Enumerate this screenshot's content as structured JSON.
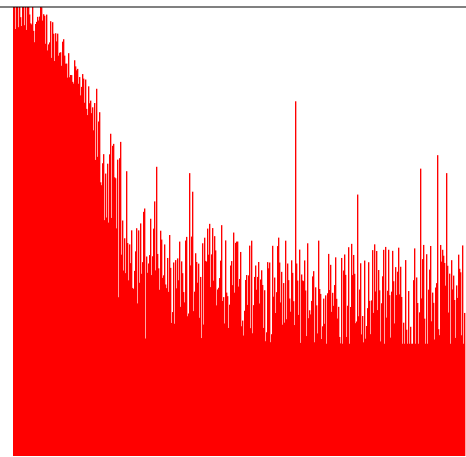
{
  "chart_data": {
    "type": "bar",
    "description_mode": "dense-histogram",
    "colors": {
      "bars": "#ff0000",
      "background": "#ffffff",
      "axis": "#000000"
    },
    "grid": false,
    "legend": "none",
    "ylim": [
      0,
      1
    ],
    "x": {
      "count": 452
    },
    "envelope": [
      {
        "pos": 0.0,
        "value": 0.985
      },
      {
        "pos": 0.05,
        "value": 0.97
      },
      {
        "pos": 0.1,
        "value": 0.92
      },
      {
        "pos": 0.14,
        "value": 0.84
      },
      {
        "pos": 0.18,
        "value": 0.74
      },
      {
        "pos": 0.2,
        "value": 0.64
      },
      {
        "pos": 0.23,
        "value": 0.56
      },
      {
        "pos": 0.27,
        "value": 0.46
      },
      {
        "pos": 0.33,
        "value": 0.42
      },
      {
        "pos": 0.45,
        "value": 0.39
      },
      {
        "pos": 0.6,
        "value": 0.37
      },
      {
        "pos": 0.8,
        "value": 0.36
      },
      {
        "pos": 1.0,
        "value": 0.35
      }
    ],
    "notable_spikes": [
      {
        "pos": 0.626,
        "value": 0.79
      },
      {
        "pos": 0.902,
        "value": 0.64
      },
      {
        "pos": 0.96,
        "value": 0.63
      },
      {
        "pos": 0.94,
        "value": 0.67
      },
      {
        "pos": 0.23,
        "value": 0.66
      },
      {
        "pos": 0.39,
        "value": 0.63
      }
    ]
  }
}
